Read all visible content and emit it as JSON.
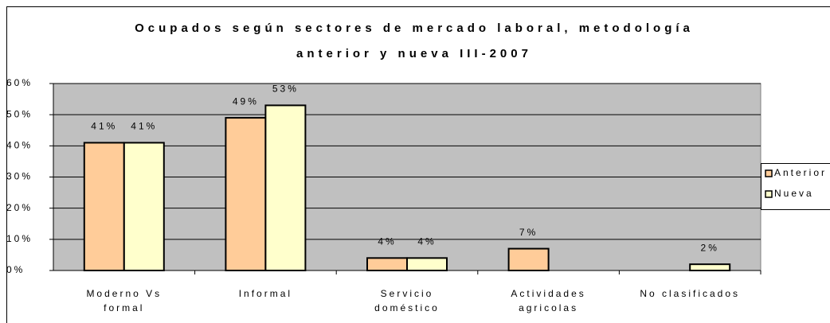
{
  "chart_data": {
    "type": "bar",
    "title": [
      "Ocupados según sectores de mercado laboral, metodología",
      "anterior y nueva III-2007"
    ],
    "categories": [
      "Moderno Vs formal",
      "Informal",
      "Servicio doméstico",
      "Actividades agricolas",
      "No clasificados"
    ],
    "series": [
      {
        "name": "Anterior",
        "color": "#ffcc99",
        "values": [
          41,
          49,
          4,
          7,
          null
        ],
        "value_labels": [
          "41%",
          "49%",
          "4%",
          "7%",
          null
        ]
      },
      {
        "name": "Nueva",
        "color": "#ffffcc",
        "values": [
          41,
          53,
          4,
          null,
          2
        ],
        "value_labels": [
          "41%",
          "53%",
          "4%",
          null,
          "2%"
        ]
      }
    ],
    "ylim": [
      0,
      60
    ],
    "yticks": [
      {
        "value": 0,
        "label": "0%"
      },
      {
        "value": 10,
        "label": "10%"
      },
      {
        "value": 20,
        "label": "20%"
      },
      {
        "value": 30,
        "label": "30%"
      },
      {
        "value": 40,
        "label": "40%"
      },
      {
        "value": 50,
        "label": "50%"
      },
      {
        "value": 60,
        "label": "60%"
      }
    ],
    "grid": true,
    "legend": "right"
  }
}
